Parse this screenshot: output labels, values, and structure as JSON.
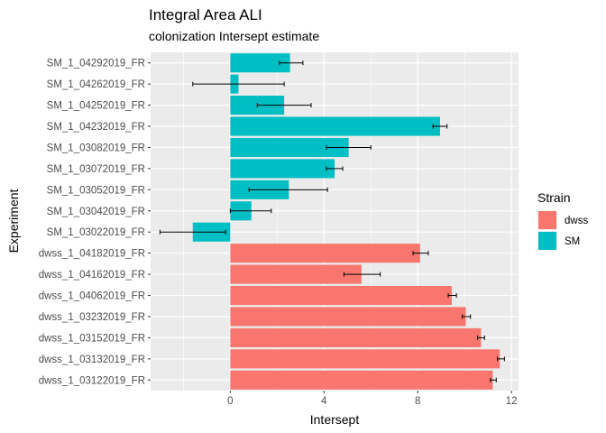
{
  "chart_data": {
    "type": "bar",
    "orientation": "horizontal",
    "title": "Integral Area ALI",
    "subtitle": "colonization Intersept estimate",
    "xlabel": "Intersept",
    "ylabel": "Experiment",
    "xlim": [
      -3.4,
      12.3
    ],
    "xticks": [
      0,
      4,
      8,
      12
    ],
    "grid": true,
    "legend": {
      "title": "Strain",
      "placement": "right",
      "entries": [
        {
          "label": "dwss",
          "color": "#F8766D"
        },
        {
          "label": "SM",
          "color": "#00BFC4"
        }
      ]
    },
    "bars": [
      {
        "category": "SM_1_04292019_FR",
        "strain": "SM",
        "value": 2.55,
        "lower": 2.1,
        "upper": 3.1
      },
      {
        "category": "SM_1_04262019_FR",
        "strain": "SM",
        "value": 0.35,
        "lower": -1.6,
        "upper": 2.3
      },
      {
        "category": "SM_1_04252019_FR",
        "strain": "SM",
        "value": 2.3,
        "lower": 1.15,
        "upper": 3.45
      },
      {
        "category": "SM_1_04232019_FR",
        "strain": "SM",
        "value": 8.95,
        "lower": 8.65,
        "upper": 9.25
      },
      {
        "category": "SM_1_03082019_FR",
        "strain": "SM",
        "value": 5.05,
        "lower": 4.1,
        "upper": 6.0
      },
      {
        "category": "SM_1_03072019_FR",
        "strain": "SM",
        "value": 4.45,
        "lower": 4.1,
        "upper": 4.8
      },
      {
        "category": "SM_1_03052019_FR",
        "strain": "SM",
        "value": 2.5,
        "lower": 0.8,
        "upper": 4.15
      },
      {
        "category": "SM_1_03042019_FR",
        "strain": "SM",
        "value": 0.9,
        "lower": 0.0,
        "upper": 1.75
      },
      {
        "category": "SM_1_03022019_FR",
        "strain": "SM",
        "value": -1.6,
        "lower": -3.0,
        "upper": -0.2
      },
      {
        "category": "dwss_1_04182019_FR",
        "strain": "dwss",
        "value": 8.1,
        "lower": 7.8,
        "upper": 8.45
      },
      {
        "category": "dwss_1_04162019_FR",
        "strain": "dwss",
        "value": 5.6,
        "lower": 4.85,
        "upper": 6.4
      },
      {
        "category": "dwss_1_04062019_FR",
        "strain": "dwss",
        "value": 9.45,
        "lower": 9.3,
        "upper": 9.65
      },
      {
        "category": "dwss_1_03232019_FR",
        "strain": "dwss",
        "value": 10.05,
        "lower": 9.9,
        "upper": 10.25
      },
      {
        "category": "dwss_1_03152019_FR",
        "strain": "dwss",
        "value": 10.7,
        "lower": 10.55,
        "upper": 10.85
      },
      {
        "category": "dwss_1_03132019_FR",
        "strain": "dwss",
        "value": 11.5,
        "lower": 11.4,
        "upper": 11.7
      },
      {
        "category": "dwss_1_03122019_FR",
        "strain": "dwss",
        "value": 11.2,
        "lower": 11.1,
        "upper": 11.35
      }
    ]
  }
}
